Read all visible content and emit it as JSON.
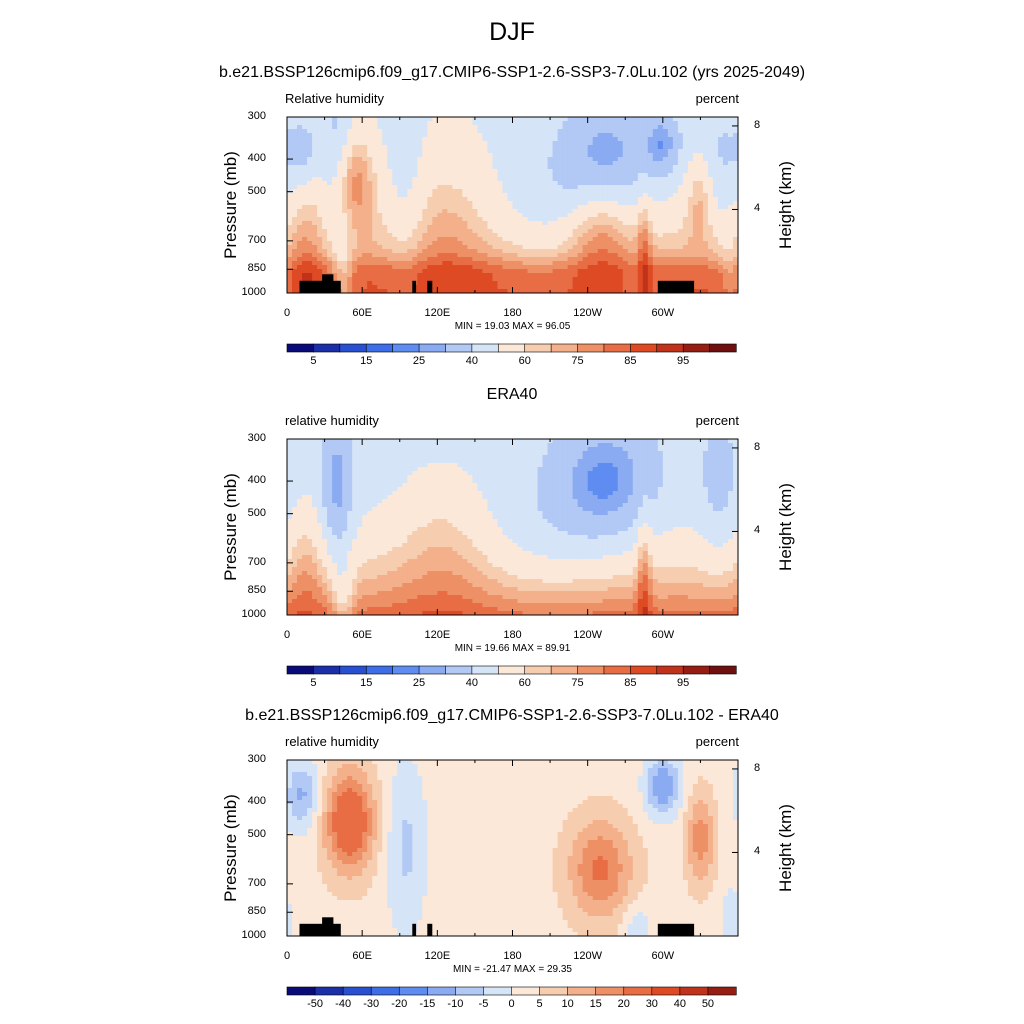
{
  "figure": {
    "season_title": "DJF"
  },
  "panels": [
    {
      "panel_title": "b.e21.BSSP126cmip6.f09_g17.CMIP6-SSP1-2.6-SSP3-7.0Lu.102 (yrs 2025-2049)",
      "left_label": "Relative humidity",
      "right_label": "percent",
      "stats": "MIN =  19.03  MAX =  96.05"
    },
    {
      "panel_title": "ERA40",
      "left_label": "relative humidity",
      "right_label": "percent",
      "stats": "MIN =  19.66  MAX =  89.91"
    },
    {
      "panel_title": "b.e21.BSSP126cmip6.f09_g17.CMIP6-SSP1-2.6-SSP3-7.0Lu.102 - ERA40",
      "left_label": "relative humidity",
      "right_label": "percent",
      "stats": "MIN = -21.47  MAX =  29.35"
    }
  ],
  "chart_data": [
    {
      "type": "heatmap",
      "title": "b.e21.BSSP126cmip6.f09_g17.CMIP6-SSP1-2.6-SSP3-7.0Lu.102 (yrs 2025-2049)",
      "subtitle_left": "Relative humidity",
      "subtitle_right": "percent",
      "ylabel": "Pressure (mb)",
      "y2label": "Height (km)",
      "x_ticks": [
        "0",
        "60E",
        "120E",
        "180",
        "120W",
        "60W"
      ],
      "y_ticks": [
        "300",
        "400",
        "500",
        "700",
        "850",
        "1000"
      ],
      "y2_ticks": [
        "8",
        "4"
      ],
      "min": 19.03,
      "max": 96.05,
      "colorbar_labels": [
        "5",
        "15",
        "25",
        "40",
        "60",
        "75",
        "85",
        "95"
      ],
      "colors": [
        "#0a0a78",
        "#1a2fa8",
        "#2950d0",
        "#3d6ee8",
        "#5f8cf0",
        "#8aabf2",
        "#b1c9f4",
        "#d5e4f7",
        "#fbe8d8",
        "#f7cdb0",
        "#f3b08a",
        "#ee9066",
        "#e86d45",
        "#de4a23",
        "#c1321b",
        "#961d13",
        "#6e1010"
      ],
      "colormap": "diverging-blue-white-red",
      "topography": "black-filled"
    },
    {
      "type": "heatmap",
      "title": "ERA40",
      "subtitle_left": "relative humidity",
      "subtitle_right": "percent",
      "ylabel": "Pressure (mb)",
      "y2label": "Height (km)",
      "x_ticks": [
        "0",
        "60E",
        "120E",
        "180",
        "120W",
        "60W"
      ],
      "y_ticks": [
        "300",
        "400",
        "500",
        "700",
        "850",
        "1000"
      ],
      "y2_ticks": [
        "8",
        "4"
      ],
      "min": 19.66,
      "max": 89.91,
      "colorbar_labels": [
        "5",
        "15",
        "25",
        "40",
        "60",
        "75",
        "85",
        "95"
      ],
      "colors": [
        "#0a0a78",
        "#1a2fa8",
        "#2950d0",
        "#3d6ee8",
        "#5f8cf0",
        "#8aabf2",
        "#b1c9f4",
        "#d5e4f7",
        "#fbe8d8",
        "#f7cdb0",
        "#f3b08a",
        "#ee9066",
        "#e86d45",
        "#de4a23",
        "#c1321b",
        "#961d13",
        "#6e1010"
      ],
      "colormap": "diverging-blue-white-red"
    },
    {
      "type": "heatmap",
      "title": "b.e21.BSSP126cmip6.f09_g17.CMIP6-SSP1-2.6-SSP3-7.0Lu.102 - ERA40",
      "subtitle_left": "relative humidity",
      "subtitle_right": "percent",
      "ylabel": "Pressure (mb)",
      "y2label": "Height (km)",
      "x_ticks": [
        "0",
        "60E",
        "120E",
        "180",
        "120W",
        "60W"
      ],
      "y_ticks": [
        "300",
        "400",
        "500",
        "700",
        "850",
        "1000"
      ],
      "y2_ticks": [
        "8",
        "4"
      ],
      "min": -21.47,
      "max": 29.35,
      "colorbar_labels": [
        "-50",
        "-40",
        "-30",
        "-20",
        "-15",
        "-10",
        "-5",
        "0",
        "5",
        "10",
        "15",
        "20",
        "30",
        "40",
        "50"
      ],
      "colors": [
        "#0a0a78",
        "#1a2fa8",
        "#2950d0",
        "#3d6ee8",
        "#5f8cf0",
        "#8aabf2",
        "#b1c9f4",
        "#d5e4f7",
        "#fbe8d8",
        "#f7cdb0",
        "#f3b08a",
        "#ee9066",
        "#e86d45",
        "#de4a23",
        "#c1321b",
        "#961d13"
      ],
      "colormap": "diverging-blue-white-red",
      "topography": "black-filled"
    }
  ]
}
